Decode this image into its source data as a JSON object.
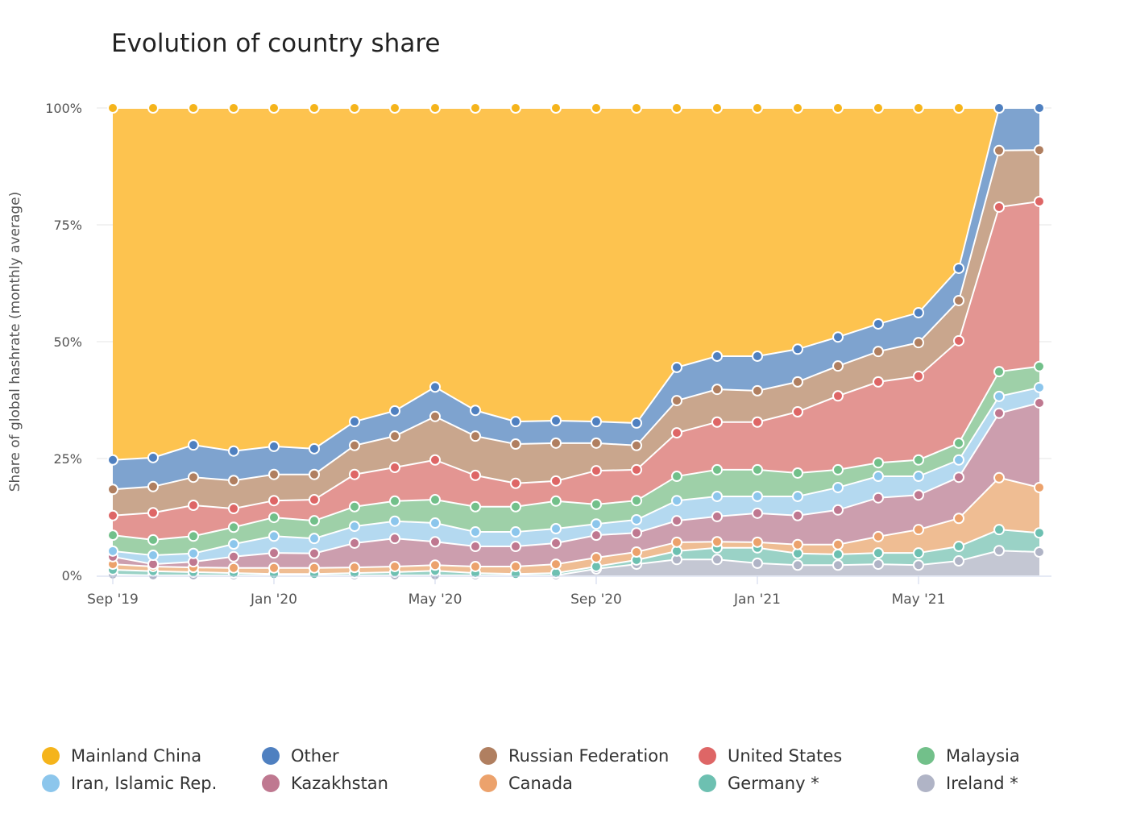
{
  "chart_data": {
    "type": "area",
    "stacked": true,
    "title": "Evolution of country share",
    "ylabel": "Share of global hashrate (monthly average)",
    "xlabel": "",
    "ylim": [
      0,
      100
    ],
    "y_ticks": [
      "0%",
      "25%",
      "50%",
      "75%",
      "100%"
    ],
    "y_tick_values": [
      0,
      25,
      50,
      75,
      100
    ],
    "x": [
      "Sep '19",
      "Oct '19",
      "Nov '19",
      "Dec '19",
      "Jan '20",
      "Feb '20",
      "Mar '20",
      "Apr '20",
      "May '20",
      "Jun '20",
      "Jul '20",
      "Aug '20",
      "Sep '20",
      "Oct '20",
      "Nov '20",
      "Dec '20",
      "Jan '21",
      "Feb '21",
      "Mar '21",
      "Apr '21",
      "May '21",
      "Jun '21",
      "Jul '21",
      "Aug '21"
    ],
    "x_tick_labels": [
      "Sep '19",
      "Jan '20",
      "May '20",
      "Sep '20",
      "Jan '21",
      "May '21"
    ],
    "x_tick_indices": [
      0,
      4,
      8,
      12,
      16,
      20
    ],
    "grid": true,
    "legend_placement": "bottom",
    "series": [
      {
        "name": "Mainland China",
        "color": "#f5b41b",
        "fill": "#fdc34f",
        "values": [
          75.3,
          74.8,
          72.1,
          73.4,
          72.4,
          72.9,
          67.1,
          64.8,
          59.7,
          64.7,
          67.1,
          66.9,
          67.1,
          67.4,
          55.5,
          53.1,
          53.1,
          51.6,
          49.0,
          46.2,
          43.8,
          34.3,
          0,
          0
        ]
      },
      {
        "name": "Other",
        "color": "#4f80c0",
        "fill": "#7ea3cf",
        "values": [
          6.3,
          6.2,
          6.9,
          6.3,
          6.0,
          5.5,
          5.1,
          5.4,
          6.3,
          5.5,
          4.8,
          4.8,
          4.6,
          4.8,
          7.1,
          7.1,
          7.4,
          7.0,
          6.2,
          5.9,
          6.4,
          6.9,
          9.1,
          9.0
        ]
      },
      {
        "name": "Russian Federation",
        "color": "#b07f60",
        "fill": "#c9a68d",
        "values": [
          5.6,
          5.6,
          6.0,
          6.0,
          5.6,
          5.4,
          6.2,
          6.7,
          9.3,
          8.4,
          8.4,
          8.1,
          5.9,
          5.2,
          6.9,
          7.0,
          6.7,
          6.4,
          6.4,
          6.5,
          7.2,
          8.6,
          12.1,
          11.0
        ]
      },
      {
        "name": "United States",
        "color": "#de6666",
        "fill": "#e39592",
        "values": [
          4.2,
          5.8,
          6.6,
          4.0,
          3.6,
          4.5,
          6.9,
          7.2,
          8.5,
          6.7,
          5.0,
          4.3,
          7.2,
          6.6,
          9.3,
          10.2,
          10.2,
          13.1,
          15.8,
          17.3,
          17.9,
          21.9,
          35.2,
          35.3
        ]
      },
      {
        "name": "Malaysia",
        "color": "#72c08a",
        "fill": "#9ed0a8",
        "values": [
          3.4,
          3.3,
          3.7,
          3.6,
          4.0,
          3.8,
          4.2,
          4.3,
          5.0,
          5.4,
          5.4,
          5.9,
          4.2,
          4.1,
          5.2,
          5.7,
          5.7,
          5.0,
          3.8,
          2.9,
          3.5,
          3.6,
          5.3,
          4.5
        ]
      },
      {
        "name": "Iran, Islamic Rep.",
        "color": "#8cc6ec",
        "fill": "#b4d9f0",
        "values": [
          1.2,
          1.9,
          1.8,
          2.7,
          3.6,
          3.2,
          3.6,
          3.7,
          4.0,
          3.1,
          3.1,
          3.1,
          2.4,
          2.8,
          4.3,
          4.3,
          3.6,
          4.1,
          4.8,
          4.6,
          4.0,
          3.7,
          3.6,
          3.3
        ]
      },
      {
        "name": "Kazakhstan",
        "color": "#bf7890",
        "fill": "#cc9eae",
        "values": [
          1.6,
          0.5,
          1.2,
          2.4,
          3.2,
          3.1,
          5.2,
          6.0,
          5.0,
          4.3,
          4.3,
          4.5,
          4.8,
          4.1,
          4.6,
          5.4,
          6.2,
          6.2,
          7.4,
          8.3,
          7.4,
          8.8,
          13.8,
          18.1
        ]
      },
      {
        "name": "Canada",
        "color": "#eca26c",
        "fill": "#efbd93",
        "values": [
          1.2,
          1.0,
          1.0,
          1.1,
          1.3,
          1.3,
          1.2,
          1.2,
          1.2,
          1.4,
          1.6,
          1.9,
          1.9,
          1.7,
          1.9,
          1.3,
          1.2,
          1.9,
          2.1,
          3.5,
          5.0,
          6.0,
          11.1,
          9.7
        ]
      },
      {
        "name": "Germany *",
        "color": "#6dc0b1",
        "fill": "#9ad2c6",
        "values": [
          1.0,
          0.9,
          0.7,
          0.5,
          0.3,
          0.3,
          0.5,
          0.7,
          1.0,
          0.5,
          0.3,
          0.5,
          0.5,
          0.9,
          1.8,
          2.5,
          3.3,
          2.5,
          2.3,
          2.4,
          2.6,
          3.1,
          4.5,
          4.1
        ]
      },
      {
        "name": "Ireland *",
        "color": "#b0b4c6",
        "fill": "#c4c7d3",
        "values": [
          0.2,
          0,
          0,
          0,
          0,
          0,
          0,
          0,
          0,
          0,
          0,
          0,
          1.4,
          2.4,
          3.4,
          3.4,
          2.6,
          2.2,
          2.2,
          2.4,
          2.2,
          3.1,
          5.3,
          5.0
        ]
      }
    ]
  }
}
